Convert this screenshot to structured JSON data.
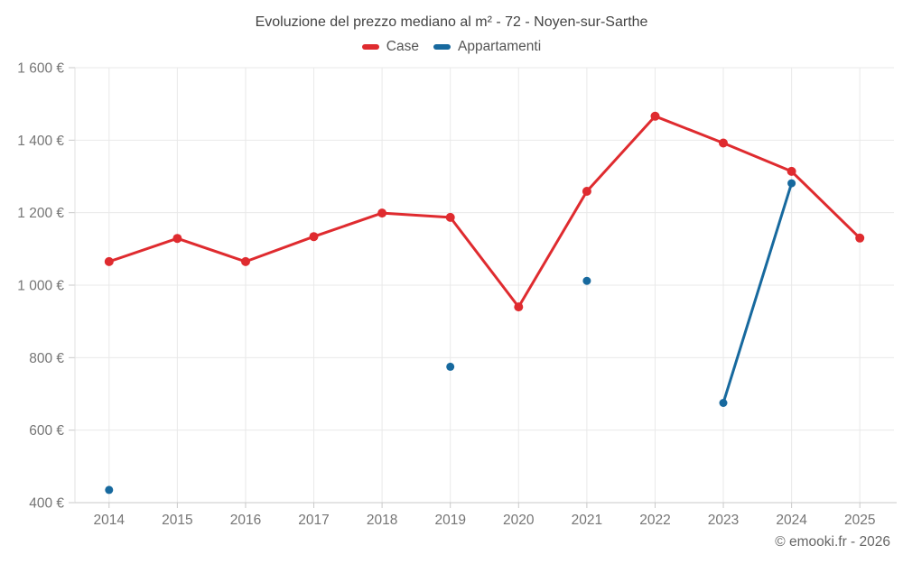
{
  "title": "Evoluzione del prezzo mediano al m² - 72 - Noyen-sur-Sarthe",
  "footer": "© emooki.fr - 2026",
  "legend": {
    "items": [
      {
        "label": "Case",
        "color": "#df2b2f"
      },
      {
        "label": "Appartamenti",
        "color": "#17699e"
      }
    ]
  },
  "chart_data": {
    "type": "line",
    "title": "Evoluzione del prezzo mediano al m² - 72 - Noyen-sur-Sarthe",
    "categories": [
      "2014",
      "2015",
      "2016",
      "2017",
      "2018",
      "2019",
      "2020",
      "2021",
      "2022",
      "2023",
      "2024",
      "2025"
    ],
    "series": [
      {
        "name": "Case",
        "color": "#df2b2f",
        "point_radius": 5,
        "values": [
          1065,
          1129,
          1065,
          1134,
          1199,
          1187,
          940,
          1259,
          1466,
          1392,
          1314,
          1130
        ]
      },
      {
        "name": "Appartamenti",
        "color": "#17699e",
        "point_radius": 4.5,
        "values": [
          435,
          null,
          null,
          null,
          null,
          775,
          null,
          1012,
          null,
          675,
          1281,
          null
        ]
      }
    ],
    "ylim": [
      400,
      1600
    ],
    "y_ticks": [
      {
        "value": 400,
        "label": "400 €"
      },
      {
        "value": 600,
        "label": "600 €"
      },
      {
        "value": 800,
        "label": "800 €"
      },
      {
        "value": 1000,
        "label": "1 000 €"
      },
      {
        "value": 1200,
        "label": "1 200 €"
      },
      {
        "value": 1400,
        "label": "1 400 €"
      },
      {
        "value": 1600,
        "label": "1 600 €"
      }
    ],
    "xlabel": "",
    "ylabel": "",
    "grid": true,
    "legend_position": "top",
    "colors": {
      "gridline": "#e9e9e9",
      "axis_line": "#c9c9c9",
      "tick_text": "#757575"
    }
  }
}
